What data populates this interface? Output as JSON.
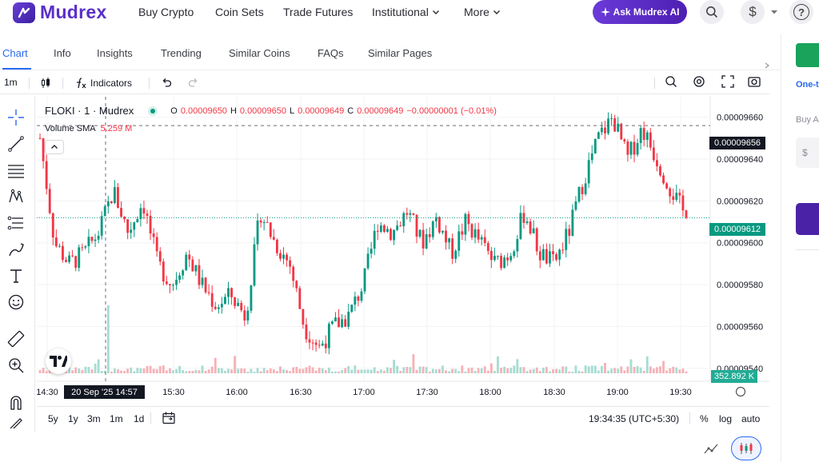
{
  "header": {
    "logo_text": "Mudrex",
    "nav": [
      {
        "label": "Buy Crypto",
        "dropdown": false
      },
      {
        "label": "Coin Sets",
        "dropdown": false
      },
      {
        "label": "Trade Futures",
        "dropdown": false
      },
      {
        "label": "Institutional",
        "dropdown": true
      },
      {
        "label": "More",
        "dropdown": true
      }
    ],
    "ask_button": "Ask Mudrex AI",
    "currency_symbol": "$",
    "help_symbol": "?"
  },
  "tabs": [
    {
      "label": "Chart",
      "active": true
    },
    {
      "label": "Info",
      "active": false
    },
    {
      "label": "Insights",
      "active": false
    },
    {
      "label": "Trending",
      "active": false
    },
    {
      "label": "Similar Coins",
      "active": false
    },
    {
      "label": "FAQs",
      "active": false
    },
    {
      "label": "Similar Pages",
      "active": false
    }
  ],
  "toolbar": {
    "interval": "1m",
    "indicators_label": "Indicators"
  },
  "legend": {
    "symbol": "FLOKI · 1 · Mudrex",
    "o_label": "O",
    "o_value": "0.00009650",
    "h_label": "H",
    "h_value": "0.00009650",
    "l_label": "L",
    "l_value": "0.00009649",
    "c_label": "C",
    "c_value": "0.00009649",
    "change": "−0.00000001 (−0.01%)",
    "volume_label": "Volume SMA",
    "volume_value": "5.259 M"
  },
  "price_tags": {
    "crosshair": "0.00009656",
    "last": "0.00009612",
    "volume": "352.892 K"
  },
  "time_tag": "20 Sep '25   14:57",
  "chart_data": {
    "type": "candlestick",
    "symbol": "FLOKI",
    "interval": "1m",
    "y_axis_ticks": [
      "0.00009660",
      "0.00009640",
      "0.00009620",
      "0.00009600",
      "0.00009580",
      "0.00009560",
      "0.00009540"
    ],
    "ylim": [
      9.538e-05,
      9.666e-05
    ],
    "x_axis_ticks": [
      "14:30",
      "15:30",
      "16:00",
      "16:30",
      "17:00",
      "17:30",
      "18:00",
      "18:30",
      "19:00",
      "19:30"
    ],
    "crosshair_price": 9.656e-05,
    "last_price": 9.612e-05,
    "close_path": [
      9.65e-05,
      9.6e-05,
      9.59e-05,
      9.595e-05,
      9.605e-05,
      9.625e-05,
      9.605e-05,
      9.62e-05,
      9.59e-05,
      9.58e-05,
      9.595e-05,
      9.58e-05,
      9.57e-05,
      9.575e-05,
      9.565e-05,
      9.615e-05,
      9.6e-05,
      9.59e-05,
      9.56e-05,
      9.55e-05,
      9.56e-05,
      9.565e-05,
      9.58e-05,
      9.61e-05,
      9.605e-05,
      9.615e-05,
      9.6e-05,
      9.612e-05,
      9.595e-05,
      9.61e-05,
      9.6e-05,
      9.59e-05,
      9.595e-05,
      9.615e-05,
      9.595e-05,
      9.59e-05,
      9.605e-05,
      9.63e-05,
      9.65e-05,
      9.66e-05,
      9.64e-05,
      9.655e-05,
      9.64e-05,
      9.625e-05,
      9.612e-05
    ]
  },
  "bottom_bar": {
    "ranges": [
      "5y",
      "1y",
      "3m",
      "1m",
      "1d"
    ],
    "clock": "19:34:35 (UTC+5:30)",
    "percent": "%",
    "log": "log",
    "auto": "auto"
  },
  "right_panel": {
    "text1": "One-t",
    "text2": "Buy A",
    "input_prefix": "$"
  },
  "colors": {
    "brand": "#5a2fc9",
    "up": "#089981",
    "down": "#f23645",
    "active_tab": "#2a6bf0"
  }
}
